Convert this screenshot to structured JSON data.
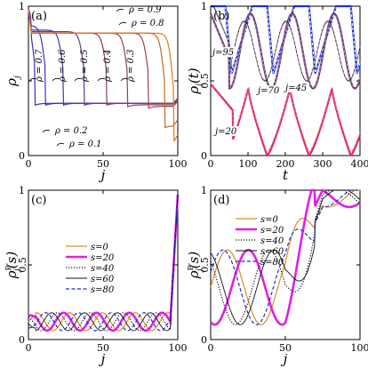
{
  "chart_data": [
    {
      "id": "a",
      "panel_label": "(a)",
      "type": "line",
      "xlabel": "j",
      "ylabel": "ρj",
      "ylabel_main": "ρ",
      "ylabel_sub": "j",
      "xlim": [
        0,
        100
      ],
      "ylim": [
        0,
        1
      ],
      "xticks": [
        0,
        50,
        100
      ],
      "yticks": [
        0,
        0.5,
        1
      ],
      "ytick_labels": [
        "0",
        "",
        "1"
      ],
      "grid": false,
      "curves": [
        {
          "label": "ρ = 0.9",
          "color": "#3a2fb0",
          "lo": 0.35,
          "hi": 0.91,
          "kink": 4
        },
        {
          "label": "ρ = 0.8",
          "color": "#4a2fb5",
          "lo": 0.35,
          "hi": 0.87,
          "kink": 11
        },
        {
          "label": "ρ = 0.7",
          "color": "#55309d",
          "lo": 0.35,
          "hi": 0.84,
          "kink": 23
        },
        {
          "label": "ρ = 0.6",
          "color": "#6a3a8a",
          "lo": 0.35,
          "hi": 0.83,
          "kink": 37
        },
        {
          "label": "ρ = 0.5",
          "color": "#7a3a74",
          "lo": 0.35,
          "hi": 0.82,
          "kink": 52
        },
        {
          "label": "ρ = 0.4",
          "color": "#8a3f60",
          "lo": 0.34,
          "hi": 0.82,
          "kink": 66
        },
        {
          "label": "ρ = 0.3",
          "color": "#9a4545",
          "lo": 0.33,
          "hi": 0.82,
          "kink": 80
        },
        {
          "label": "ρ = 0.2",
          "color": "#c06a2a",
          "lo": 0.2,
          "hi": 0.82,
          "kink": 91
        },
        {
          "label": "ρ = 0.1",
          "color": "#e07b20",
          "lo": 0.1,
          "hi": 0.82,
          "kink": 97
        }
      ],
      "annotations": [
        "ρ = 0.9",
        "ρ = 0.8",
        "ρ = 0.7",
        "ρ = 0.6",
        "ρ = 0.5",
        "ρ = 0.4",
        "ρ = 0.3",
        "ρ = 0.2",
        "ρ = 0.1"
      ]
    },
    {
      "id": "b",
      "panel_label": "(b)",
      "type": "line",
      "xlabel": "t",
      "ylabel": "ρj(t)",
      "ylabel_main": "ρ",
      "ylabel_sub": "j",
      "ylabel_suffix": "(t)",
      "xlim": [
        0,
        400
      ],
      "ylim": [
        0,
        1
      ],
      "xticks": [
        0,
        100,
        200,
        300,
        400
      ],
      "yticks": [
        0,
        0.5,
        1
      ],
      "ytick_labels": [
        "0",
        "0.5",
        "1"
      ],
      "grid": false,
      "series": [
        {
          "label": "j=95",
          "color": "#1a2fd6",
          "period": 112,
          "phase": 0,
          "lo": 0.55,
          "hi": 1.0
        },
        {
          "label": "j=70",
          "color": "#6a3a6e",
          "period": 112,
          "phase": 0.3,
          "lo": 0.45,
          "hi": 0.95
        },
        {
          "label": "j=45",
          "color": "#111111",
          "period": 112,
          "phase": 0.45,
          "lo": 0.5,
          "hi": 0.9
        },
        {
          "label": "j=20",
          "color": "#e0208f",
          "period": 112,
          "phase": 0.1,
          "lo": 0.0,
          "hi": 0.45
        }
      ],
      "annotations": [
        "j=95",
        "j=70",
        "j=45",
        "j=20"
      ]
    },
    {
      "id": "c",
      "panel_label": "(c)",
      "type": "line",
      "xlabel": "j",
      "ylabel": "ρPj(s)",
      "ylabel_main": "ρ",
      "ylabel_sup": "P",
      "ylabel_sub": "j",
      "ylabel_suffix": "(s)",
      "xlim": [
        0,
        100
      ],
      "ylim": [
        0,
        1
      ],
      "xticks": [
        0,
        50,
        100
      ],
      "yticks": [
        0,
        0.5,
        1
      ],
      "ytick_labels": [
        "0",
        "0.5",
        "1"
      ],
      "grid": false,
      "legend": {
        "placement": "upper-left",
        "entries": [
          {
            "label": "s=0",
            "color": "#e08a20",
            "style": "solid"
          },
          {
            "label": "s=20",
            "color": "#e020e0",
            "style": "solid-thick"
          },
          {
            "label": "s=40",
            "color": "#111111",
            "style": "dotted"
          },
          {
            "label": "s=60",
            "color": "#111111",
            "style": "solid-thin"
          },
          {
            "label": "s=80",
            "color": "#1a2fd6",
            "style": "dashed"
          }
        ]
      },
      "series": [
        {
          "label": "s=0",
          "color": "#e08a20",
          "style": "solid",
          "shift": 0
        },
        {
          "label": "s=20",
          "color": "#e020e0",
          "style": "solid-thick",
          "shift": 18
        },
        {
          "label": "s=40",
          "color": "#111111",
          "style": "dotted",
          "shift": 36
        },
        {
          "label": "s=60",
          "color": "#111111",
          "style": "solid-thin",
          "shift": 54
        },
        {
          "label": "s=80",
          "color": "#1a2fd6",
          "style": "dashed",
          "shift": 72
        }
      ]
    },
    {
      "id": "d",
      "panel_label": "(d)",
      "type": "line",
      "xlabel": "j",
      "ylabel": "ρPj(s)",
      "ylabel_main": "ρ",
      "ylabel_sup": "P",
      "ylabel_sub": "j",
      "ylabel_suffix": "(s)",
      "xlim": [
        0,
        100
      ],
      "ylim": [
        0,
        1
      ],
      "xticks": [
        0,
        50,
        100
      ],
      "yticks": [
        0,
        0.5,
        1
      ],
      "ytick_labels": [
        "0",
        "0.5",
        "1"
      ],
      "grid": false,
      "legend": {
        "placement": "upper-left",
        "entries": [
          {
            "label": "s=0",
            "color": "#e08a20",
            "style": "solid"
          },
          {
            "label": "s=20",
            "color": "#e020e0",
            "style": "solid-thick"
          },
          {
            "label": "s=40",
            "color": "#111111",
            "style": "dotted"
          },
          {
            "label": "s=60",
            "color": "#111111",
            "style": "solid-thin"
          },
          {
            "label": "s=80",
            "color": "#1a2fd6",
            "style": "dashed"
          }
        ]
      },
      "series": [
        {
          "label": "s=0",
          "color": "#e08a20",
          "style": "solid",
          "shift": 0
        },
        {
          "label": "s=20",
          "color": "#e020e0",
          "style": "solid-thick",
          "shift": 14
        },
        {
          "label": "s=40",
          "color": "#111111",
          "style": "dotted",
          "shift": 28
        },
        {
          "label": "s=60",
          "color": "#111111",
          "style": "solid-thin",
          "shift": -14
        },
        {
          "label": "s=80",
          "color": "#1a2fd6",
          "style": "dashed",
          "shift": 42
        }
      ]
    }
  ]
}
